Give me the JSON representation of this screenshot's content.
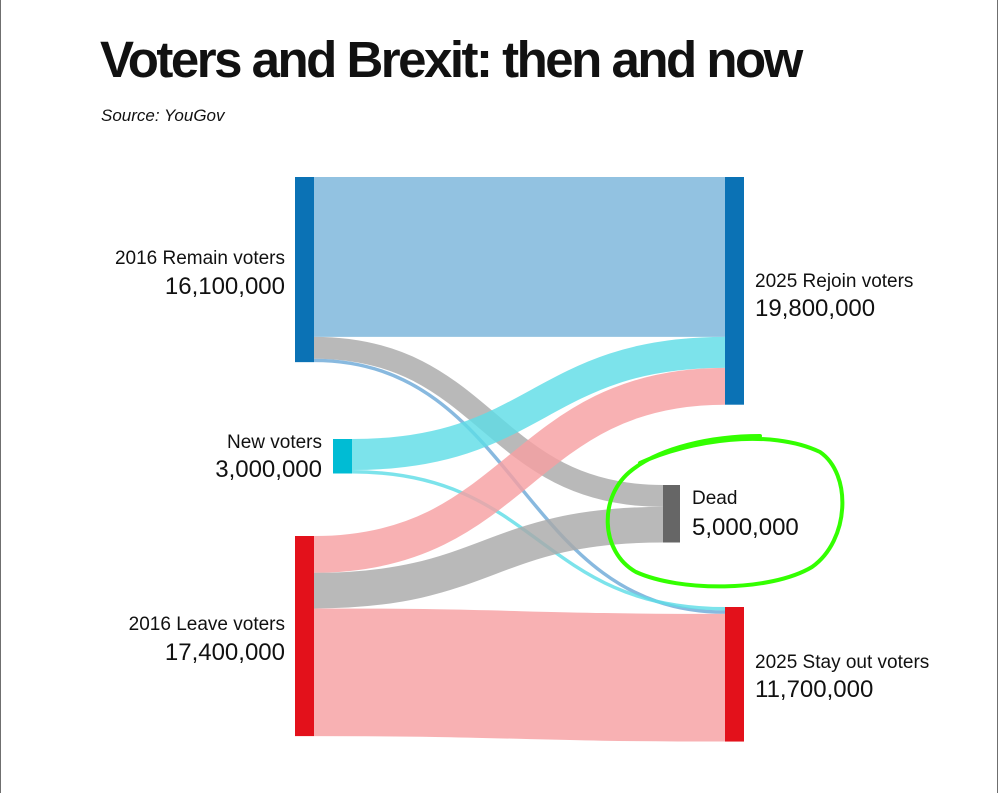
{
  "title": "Voters and Brexit: then and now",
  "source": "Source: YouGov",
  "chart_data": {
    "type": "sankey",
    "nodes": [
      {
        "id": "remain",
        "label": "2016 Remain voters",
        "value_label": "16,100,000",
        "value": 16100000,
        "color": "#0b72b5"
      },
      {
        "id": "new",
        "label": "New voters",
        "value_label": "3,000,000",
        "value": 3000000,
        "color": "#00bcd4"
      },
      {
        "id": "leave",
        "label": "2016 Leave voters",
        "value_label": "17,400,000",
        "value": 17400000,
        "color": "#e3111b"
      },
      {
        "id": "rejoin",
        "label": "2025 Rejoin voters",
        "value_label": "19,800,000",
        "value": 19800000,
        "color": "#0b72b5"
      },
      {
        "id": "dead",
        "label": "Dead",
        "value_label": "5,000,000",
        "value": 5000000,
        "color": "#666666"
      },
      {
        "id": "stayout",
        "label": "2025 Stay out voters",
        "value_label": "11,700,000",
        "value": 11700000,
        "color": "#e3111b"
      }
    ],
    "links": [
      {
        "source": "remain",
        "target": "rejoin",
        "value": 13900000,
        "color": "#92c2e1"
      },
      {
        "source": "remain",
        "target": "dead",
        "value": 1900000,
        "color": "#aaaaaa"
      },
      {
        "source": "remain",
        "target": "stayout",
        "value": 300000,
        "color": "#6eaad8"
      },
      {
        "source": "new",
        "target": "rejoin",
        "value": 2700000,
        "color": "#5fdde6"
      },
      {
        "source": "new",
        "target": "stayout",
        "value": 300000,
        "color": "#5fdde6"
      },
      {
        "source": "leave",
        "target": "rejoin",
        "value": 3200000,
        "color": "#f7a0a2"
      },
      {
        "source": "leave",
        "target": "dead",
        "value": 3100000,
        "color": "#aaaaaa"
      },
      {
        "source": "leave",
        "target": "stayout",
        "value": 11100000,
        "color": "#f7a0a2"
      }
    ],
    "annotation": {
      "type": "hand-drawn-circle",
      "target": "dead",
      "color": "#33ff00"
    }
  }
}
